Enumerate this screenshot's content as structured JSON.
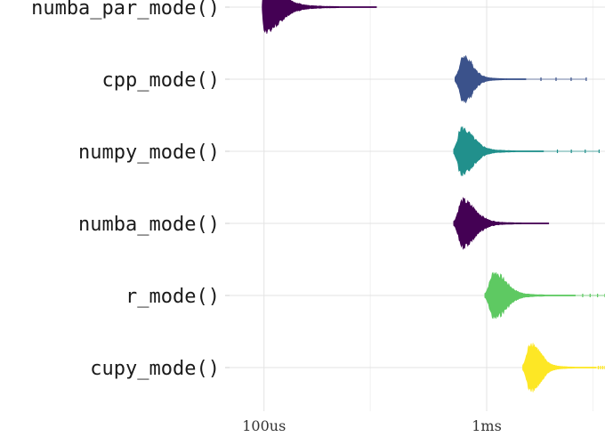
{
  "chart_data": {
    "type": "violin",
    "title": "",
    "xlabel": "",
    "ylabel": "",
    "x_scale": "log10",
    "xlim_seconds": [
      7e-05,
      0.0034
    ],
    "x_ticks": [
      {
        "label": "100us",
        "value": 0.0001
      },
      {
        "label": "1ms",
        "value": 0.001
      }
    ],
    "x_minor_ticks": [
      0.0003,
      0.003
    ],
    "grid": true,
    "legend": "none",
    "series": [
      {
        "name": "numba_par_mode()",
        "color": "#440154",
        "min": 9.8e-05,
        "mode": 0.0001,
        "tail_end": 0.00032,
        "max": 0.00032,
        "peak_width": 0.9
      },
      {
        "name": "cpp_mode()",
        "color": "#3b528b",
        "min": 0.00072,
        "mode": 0.00079,
        "tail_end": 0.0015,
        "max": 0.0028,
        "peak_width": 0.85
      },
      {
        "name": "numpy_mode()",
        "color": "#21908c",
        "min": 0.00071,
        "mode": 0.00077,
        "tail_end": 0.0018,
        "max": 0.0032,
        "peak_width": 0.85
      },
      {
        "name": "numba_mode()",
        "color": "#440154",
        "min": 0.00071,
        "mode": 0.00078,
        "tail_end": 0.0019,
        "max": 0.0019,
        "peak_width": 0.85
      },
      {
        "name": "r_mode()",
        "color": "#5ec962",
        "min": 0.00098,
        "mode": 0.00108,
        "tail_end": 0.0025,
        "max": 0.0034,
        "peak_width": 0.85
      },
      {
        "name": "cupy_mode()",
        "color": "#fde725",
        "min": 0.00145,
        "mode": 0.00158,
        "tail_end": 0.0031,
        "max": 0.0034,
        "peak_width": 0.9
      }
    ]
  }
}
